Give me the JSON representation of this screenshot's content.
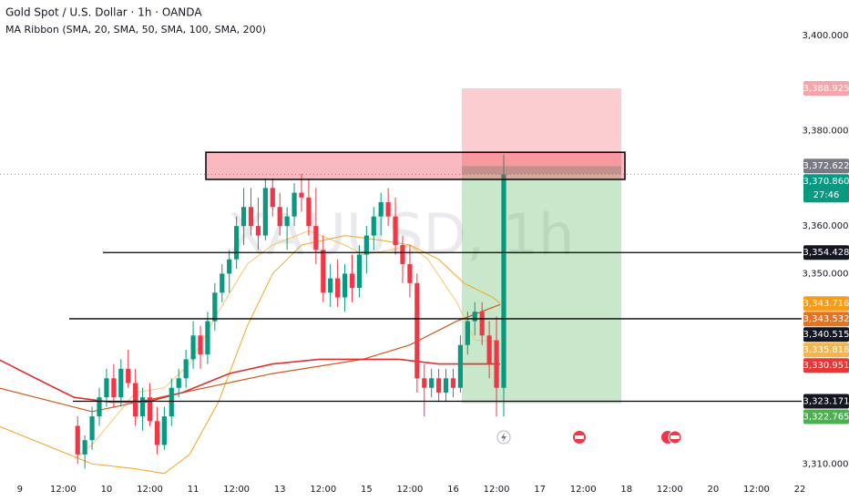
{
  "chart_data": {
    "type": "candlestick",
    "title": "Gold Spot / U.S. Dollar · 1h · OANDA",
    "subtitle": "MA Ribbon (SMA, 20, SMA, 50, SMA, 100, SMA, 200)",
    "watermark": "XAUUSD, 1h",
    "up_color": "#089981",
    "down_color": "#f23645",
    "xlim": [
      -5.5,
      216.5
    ],
    "ylim": [
      3307,
      3407.5
    ],
    "xticks": [
      {
        "value": 0,
        "label": "9"
      },
      {
        "value": 12,
        "label": "12:00"
      },
      {
        "value": 24,
        "label": "10"
      },
      {
        "value": 36,
        "label": "12:00"
      },
      {
        "value": 48,
        "label": "11"
      },
      {
        "value": 60,
        "label": "12:00"
      },
      {
        "value": 72,
        "label": "13"
      },
      {
        "value": 84,
        "label": "12:00"
      },
      {
        "value": 96,
        "label": "15"
      },
      {
        "value": 108,
        "label": "12:00"
      },
      {
        "value": 120,
        "label": "16"
      },
      {
        "value": 132,
        "label": "12:00"
      },
      {
        "value": 144,
        "label": "17"
      },
      {
        "value": 156,
        "label": "12:00"
      },
      {
        "value": 168,
        "label": "18"
      },
      {
        "value": 180,
        "label": "12:00"
      },
      {
        "value": 192,
        "label": "20"
      },
      {
        "value": 204,
        "label": "12:00"
      },
      {
        "value": 216,
        "label": "22"
      }
    ],
    "yticks": [
      {
        "value": 3400,
        "label": "3,400.000"
      },
      {
        "value": 3380,
        "label": "3,380.000"
      },
      {
        "value": 3360,
        "label": "3,360.000"
      },
      {
        "value": 3350,
        "label": "3,350.000"
      },
      {
        "value": 3310,
        "label": "3,310.000"
      }
    ],
    "grid": false,
    "candles": {
      "x": [
        16,
        18,
        20,
        22,
        24,
        26,
        28,
        30,
        32,
        34,
        36,
        38,
        40,
        42,
        44,
        46,
        48,
        50,
        52,
        54,
        56,
        58,
        60,
        62,
        64,
        66,
        68,
        70,
        72,
        74,
        76,
        78,
        80,
        82,
        84,
        86,
        88,
        90,
        92,
        94,
        96,
        98,
        100,
        102,
        104,
        106,
        108,
        110,
        112,
        114,
        116,
        118,
        120,
        122,
        124,
        126,
        128,
        130,
        132,
        134
      ],
      "ohlc": [
        [
          3318,
          3320,
          3310,
          3312
        ],
        [
          3312,
          3316,
          3309,
          3315
        ],
        [
          3315,
          3322,
          3313,
          3320
        ],
        [
          3320,
          3326,
          3318,
          3324
        ],
        [
          3324,
          3330,
          3322,
          3328
        ],
        [
          3328,
          3331,
          3322,
          3324
        ],
        [
          3324,
          3332,
          3322,
          3330
        ],
        [
          3330,
          3334,
          3326,
          3327
        ],
        [
          3327,
          3330,
          3318,
          3320
        ],
        [
          3320,
          3326,
          3317,
          3324
        ],
        [
          3324,
          3327,
          3318,
          3319
        ],
        [
          3319,
          3322,
          3312,
          3314
        ],
        [
          3314,
          3322,
          3313,
          3320
        ],
        [
          3320,
          3328,
          3318,
          3326
        ],
        [
          3326,
          3330,
          3324,
          3328
        ],
        [
          3328,
          3334,
          3326,
          3332
        ],
        [
          3332,
          3340,
          3330,
          3337
        ],
        [
          3337,
          3339,
          3330,
          3333
        ],
        [
          3333,
          3342,
          3331,
          3340
        ],
        [
          3340,
          3348,
          3338,
          3346
        ],
        [
          3346,
          3352,
          3344,
          3350
        ],
        [
          3350,
          3355,
          3346,
          3353
        ],
        [
          3353,
          3362,
          3351,
          3360
        ],
        [
          3360,
          3368,
          3356,
          3364
        ],
        [
          3364,
          3368,
          3358,
          3360
        ],
        [
          3360,
          3366,
          3355,
          3358
        ],
        [
          3358,
          3370,
          3357,
          3368
        ],
        [
          3368,
          3370,
          3362,
          3364
        ],
        [
          3364,
          3367,
          3358,
          3360
        ],
        [
          3360,
          3364,
          3355,
          3362
        ],
        [
          3362,
          3369,
          3360,
          3367
        ],
        [
          3367,
          3371,
          3363,
          3366
        ],
        [
          3366,
          3370,
          3358,
          3360
        ],
        [
          3360,
          3368,
          3352,
          3355
        ],
        [
          3355,
          3358,
          3344,
          3346
        ],
        [
          3346,
          3352,
          3343,
          3349
        ],
        [
          3349,
          3353,
          3343,
          3345
        ],
        [
          3345,
          3352,
          3342,
          3350
        ],
        [
          3350,
          3354,
          3344,
          3347
        ],
        [
          3347,
          3356,
          3345,
          3354
        ],
        [
          3354,
          3360,
          3350,
          3358
        ],
        [
          3358,
          3364,
          3355,
          3362
        ],
        [
          3362,
          3367,
          3358,
          3365
        ],
        [
          3365,
          3368,
          3360,
          3362
        ],
        [
          3362,
          3366,
          3354,
          3356
        ],
        [
          3356,
          3358,
          3348,
          3352
        ],
        [
          3352,
          3356,
          3345,
          3348
        ],
        [
          3348,
          3350,
          3325,
          3328
        ],
        [
          3328,
          3331,
          3320,
          3326
        ],
        [
          3326,
          3330,
          3324,
          3328
        ],
        [
          3328,
          3330,
          3323,
          3325
        ],
        [
          3325,
          3330,
          3323,
          3328
        ],
        [
          3328,
          3330,
          3324,
          3326
        ],
        [
          3326,
          3337,
          3325,
          3335
        ],
        [
          3335,
          3342,
          3333,
          3340
        ],
        [
          3340,
          3344,
          3337,
          3342
        ],
        [
          3342,
          3344,
          3335,
          3337
        ],
        [
          3337,
          3340,
          3328,
          3331
        ],
        [
          3336,
          3341,
          3320,
          3326
        ],
        [
          3326,
          3375,
          3320,
          3370.86
        ]
      ]
    },
    "series": [
      {
        "color": "#f9c46b",
        "width": 1,
        "x": [
          15,
          20,
          32,
          40,
          47,
          55,
          63,
          70,
          80,
          90,
          95,
          103,
          108,
          113,
          121,
          126,
          133
        ],
        "values": [
          3311,
          3314,
          3325,
          3326,
          3331,
          3342,
          3352,
          3356,
          3359,
          3356,
          3354,
          3355,
          3356,
          3353,
          3344,
          3336,
          3335.8
        ]
      },
      {
        "color": "#f5a623",
        "width": 1,
        "x": [
          -6,
          7,
          20,
          32,
          40,
          47,
          55,
          63,
          70,
          78,
          90,
          100,
          108,
          116,
          123,
          131,
          133
        ],
        "values": [
          3318,
          3314,
          3310,
          3309,
          3308,
          3312,
          3323,
          3339,
          3350,
          3356,
          3358,
          3357,
          3356,
          3353,
          3348,
          3345,
          3343.7
        ]
      },
      {
        "color": "#d2571c",
        "width": 1.2,
        "x": [
          -6,
          20,
          45,
          70,
          95,
          108,
          121,
          133
        ],
        "values": [
          3326,
          3321,
          3325,
          3329,
          3332,
          3335,
          3340,
          3343.5
        ]
      },
      {
        "color": "#e0302e",
        "width": 1.6,
        "x": [
          -6,
          7,
          15,
          25,
          35,
          45,
          58,
          70,
          83,
          95,
          105,
          116,
          126,
          133
        ],
        "values": [
          3332,
          3327,
          3324,
          3323,
          3323,
          3325,
          3329,
          3331,
          3332,
          3332,
          3332,
          3331,
          3331,
          3331
        ]
      }
    ],
    "zone": {
      "low": 3369.8,
      "high": 3375.5
    },
    "price_labels": [
      {
        "value": 3388.925,
        "label": "3,388.925",
        "color": "#f7a5ab"
      },
      {
        "value": 3372.622,
        "label": "3,372.622",
        "color": "#787b86"
      },
      {
        "value": 3370.86,
        "label": "3,370.860",
        "color": "#089981"
      },
      {
        "value": 3354.428,
        "label": "3,354.428",
        "color": "#131722"
      },
      {
        "value": 3343.716,
        "label": "3,343.716",
        "color": "#f59d1a"
      },
      {
        "value": 3343.532,
        "label": "3,343.532",
        "color": "#e8731c"
      },
      {
        "value": 3340.515,
        "label": "3,340.515",
        "color": "#131722"
      },
      {
        "value": 3335.816,
        "label": "3,335.816",
        "color": "#f7b548"
      },
      {
        "value": 3330.951,
        "label": "3,330.951",
        "color": "#e53935"
      },
      {
        "value": 3323.171,
        "label": "3,323.171",
        "color": "#131722"
      },
      {
        "value": 3322.765,
        "label": "3,322.765",
        "color": "#4caf50"
      }
    ],
    "countdown": "27:46"
  }
}
